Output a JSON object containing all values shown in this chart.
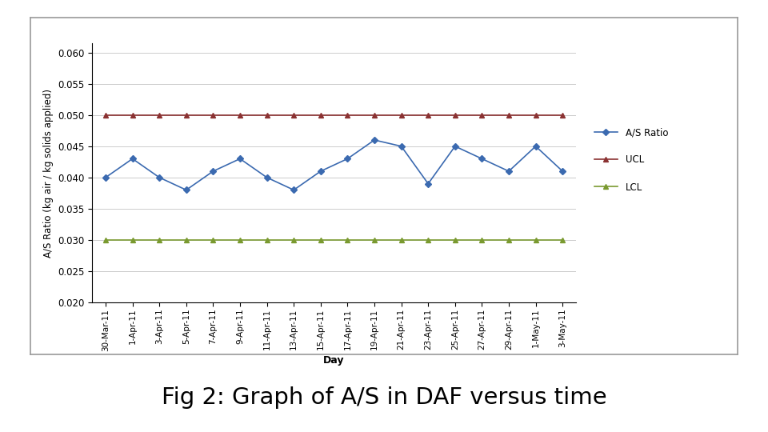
{
  "x_labels": [
    "30-Mar-11",
    "1-Apr-11",
    "3-Apr-11",
    "5-Apr-11",
    "7-Apr-11",
    "9-Apr-11",
    "11-Apr-11",
    "13-Apr-11",
    "15-Apr-11",
    "17-Apr-11",
    "19-Apr-11",
    "21-Apr-11",
    "23-Apr-11",
    "25-Apr-11",
    "27-Apr-11",
    "29-Apr-11",
    "1-May-11",
    "3-May-11"
  ],
  "as_ratio": [
    0.04,
    0.043,
    0.04,
    0.038,
    0.041,
    0.043,
    0.04,
    0.038,
    0.041,
    0.043,
    0.046,
    0.045,
    0.039,
    0.045,
    0.043,
    0.041,
    0.045,
    0.041
  ],
  "ucl": 0.05,
  "lcl": 0.03,
  "ylabel": "A/S Ratio (kg air / kg solids applied)",
  "xlabel": "Day",
  "ylim_min": 0.02,
  "ylim_max": 0.0615,
  "yticks": [
    0.02,
    0.025,
    0.03,
    0.035,
    0.04,
    0.045,
    0.05,
    0.055,
    0.06
  ],
  "as_color": "#3B6AB0",
  "ucl_color": "#8B3232",
  "lcl_color": "#7A9A30",
  "title": "Fig 2: Graph of A/S in DAF versus time",
  "background_chart": "#FFFFFF",
  "background_fig": "#FFFFFF",
  "outer_box_color": "#AAAAAA"
}
